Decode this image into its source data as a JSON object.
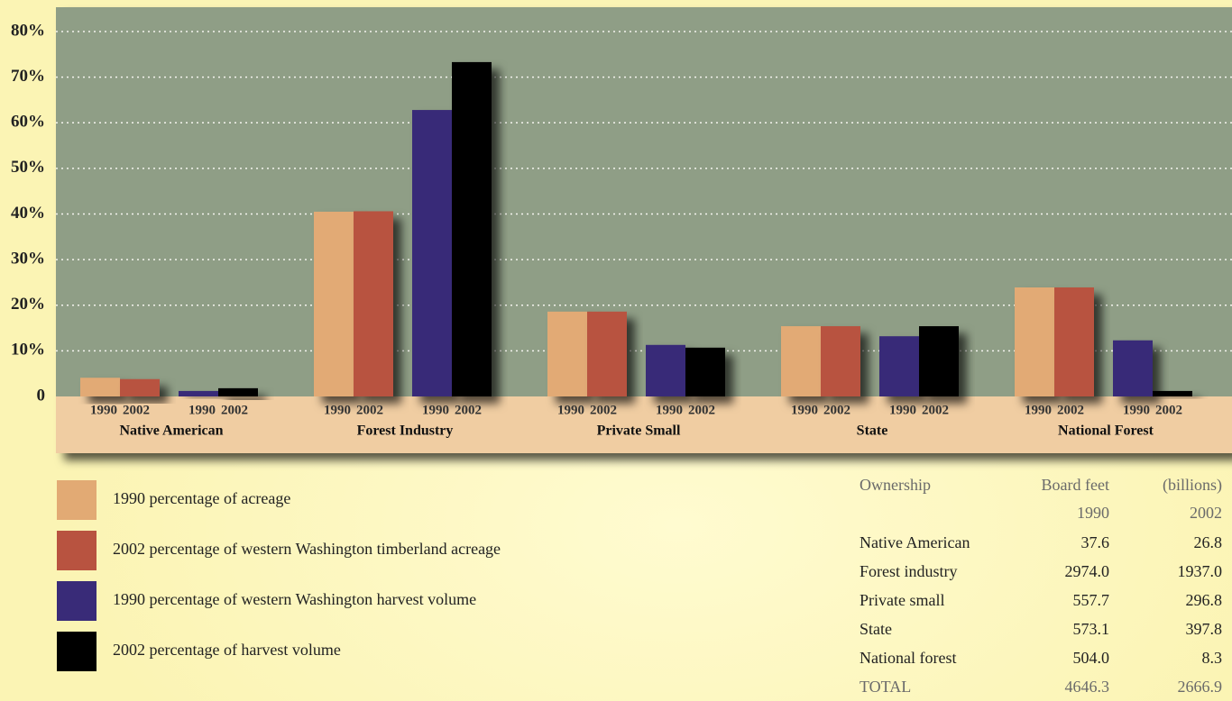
{
  "chart_data": {
    "type": "bar",
    "categories": [
      "Native American",
      "Forest Industry",
      "Private Small",
      "State",
      "National Forest"
    ],
    "series": [
      {
        "name": "1990 percentage of acreage",
        "year": "1990",
        "color": "#e2aa74",
        "values": [
          4.1,
          40.5,
          18.6,
          15.4,
          23.9
        ]
      },
      {
        "name": "2002 percentage of western Washington timberland acreage",
        "year": "2002",
        "color": "#b85340",
        "values": [
          3.8,
          40.6,
          18.6,
          15.4,
          23.9
        ]
      },
      {
        "name": "1990 percentage of western Washington harvest volume",
        "year": "1990",
        "color": "#392b78",
        "values": [
          1.2,
          62.8,
          11.3,
          13.2,
          12.3
        ]
      },
      {
        "name": "2002 percentage of harvest volume",
        "year": "2002",
        "color": "#000000",
        "values": [
          1.8,
          73.3,
          10.7,
          15.4,
          1.2
        ]
      }
    ],
    "ylim": [
      0,
      80
    ],
    "yticks": [
      0,
      {
        "value": 10,
        "label": "10%"
      },
      {
        "value": 20,
        "label": "20%"
      },
      {
        "value": 30,
        "label": "30%"
      },
      {
        "value": 40,
        "label": "40%"
      },
      {
        "value": 50,
        "label": "50%"
      },
      {
        "value": 60,
        "label": "60%"
      },
      {
        "value": 70,
        "label": "70%"
      },
      {
        "value": 80,
        "label": "80%"
      }
    ],
    "grid": true
  },
  "table": {
    "header": [
      "Ownership",
      "Board feet",
      "(billions)"
    ],
    "subheader": [
      "1990",
      "2002"
    ],
    "rows": [
      [
        "Native American",
        "37.6",
        "26.8"
      ],
      [
        "Forest industry",
        "2974.0",
        "1937.0"
      ],
      [
        "Private small",
        "557.7",
        "296.8"
      ],
      [
        "State",
        "573.1",
        "397.8"
      ],
      [
        "National forest",
        "504.0",
        "8.3"
      ],
      [
        "TOTAL",
        "4646.3",
        "2666.9"
      ]
    ]
  }
}
